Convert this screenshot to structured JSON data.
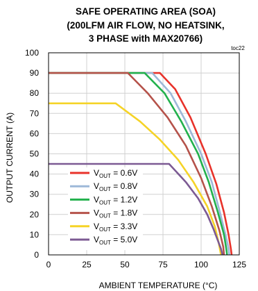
{
  "chart_data": {
    "type": "line",
    "title_lines": [
      "SAFE OPERATING AREA (SOA)",
      "(200LFM AIR FLOW, NO HEATSINK,",
      "3 PHASE with MAX20766)"
    ],
    "figure_code": "toc22",
    "xlabel": "AMBIENT TEMPERATURE (°C)",
    "ylabel": "OUTPUT CURRENT (A)",
    "xlim": [
      0,
      125
    ],
    "ylim": [
      0,
      100
    ],
    "xticks": [
      "0",
      "25",
      "50",
      "75",
      "100",
      "125"
    ],
    "yticks": [
      "0",
      "10",
      "20",
      "30",
      "40",
      "50",
      "60",
      "70",
      "80",
      "90",
      "100"
    ],
    "grid": true,
    "legend_position": "bottom-left",
    "series": [
      {
        "name": "0.6V",
        "color": "#e8322a",
        "points": [
          [
            0,
            90
          ],
          [
            73,
            90
          ],
          [
            83,
            82
          ],
          [
            93,
            68
          ],
          [
            103,
            50
          ],
          [
            110,
            35
          ],
          [
            115,
            21
          ],
          [
            118,
            10
          ],
          [
            119.5,
            3
          ],
          [
            120,
            0
          ]
        ]
      },
      {
        "name": "0.8V",
        "color": "#9db8d8",
        "points": [
          [
            0,
            90
          ],
          [
            68,
            90
          ],
          [
            80,
            80
          ],
          [
            90,
            66
          ],
          [
            100,
            50
          ],
          [
            107,
            36
          ],
          [
            112,
            22
          ],
          [
            116,
            10
          ],
          [
            118,
            3
          ],
          [
            118.5,
            0
          ]
        ]
      },
      {
        "name": "1.2V",
        "color": "#22b14c",
        "points": [
          [
            0,
            90
          ],
          [
            63,
            90
          ],
          [
            76,
            80
          ],
          [
            87,
            66
          ],
          [
            98,
            50
          ],
          [
            105,
            36
          ],
          [
            111,
            21
          ],
          [
            115,
            10
          ],
          [
            116.5,
            3
          ],
          [
            117,
            0
          ]
        ]
      },
      {
        "name": "1.8V",
        "color": "#b5524a",
        "points": [
          [
            0,
            90
          ],
          [
            52,
            90
          ],
          [
            65,
            80
          ],
          [
            78,
            68
          ],
          [
            90,
            54
          ],
          [
            100,
            38
          ],
          [
            107,
            24
          ],
          [
            112,
            12
          ],
          [
            114.5,
            4
          ],
          [
            115,
            0
          ]
        ]
      },
      {
        "name": "3.3V",
        "color": "#f5d327",
        "points": [
          [
            0,
            75
          ],
          [
            44,
            75
          ],
          [
            60,
            66
          ],
          [
            73,
            57
          ],
          [
            85,
            47
          ],
          [
            95,
            36
          ],
          [
            104,
            24
          ],
          [
            109,
            14
          ],
          [
            111.5,
            6
          ],
          [
            113,
            0
          ]
        ]
      },
      {
        "name": "5.0V",
        "color": "#7c5a93",
        "points": [
          [
            0,
            45
          ],
          [
            79,
            45
          ],
          [
            90,
            36
          ],
          [
            98,
            28
          ],
          [
            104,
            20
          ],
          [
            108,
            13
          ],
          [
            111,
            7
          ],
          [
            113,
            3
          ],
          [
            114,
            0
          ]
        ]
      }
    ],
    "legend_prefix": "V",
    "legend_prefix_sub": "OUT",
    "legend_eq": " = "
  }
}
